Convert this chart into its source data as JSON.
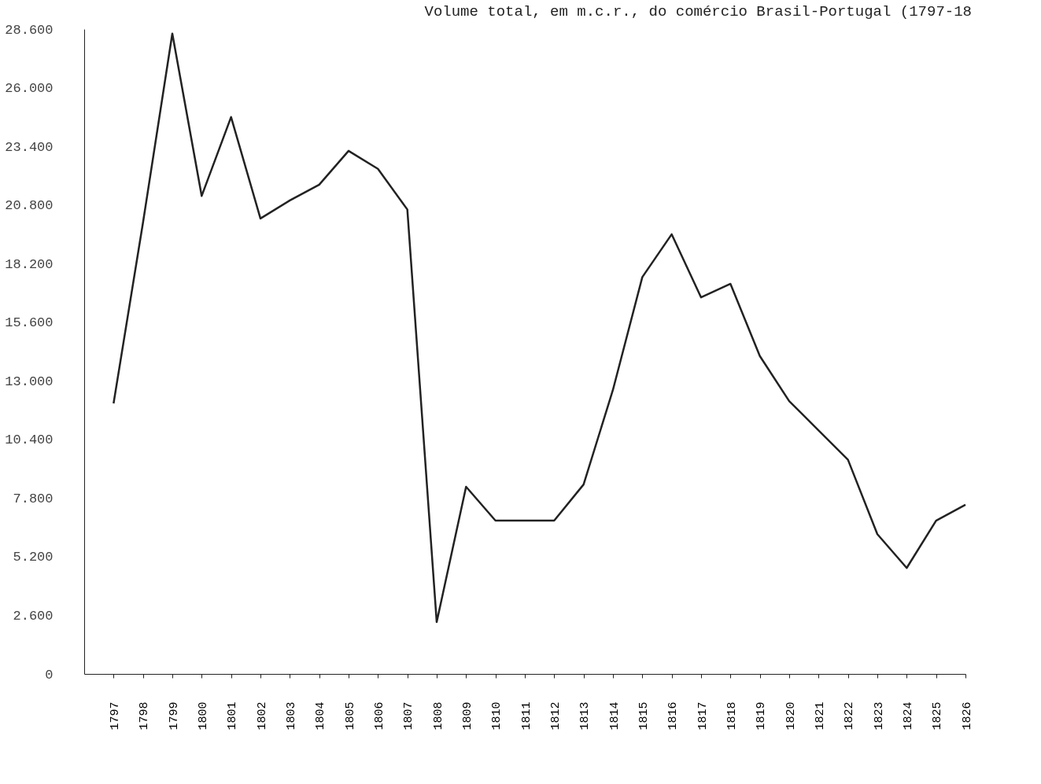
{
  "chart_data": {
    "type": "line",
    "title": "Volume total, em m.c.r., do comércio Brasil-Portugal (1797-18",
    "categories": [
      "1797",
      "1798",
      "1799",
      "1800",
      "1801",
      "1802",
      "1803",
      "1804",
      "1805",
      "1806",
      "1807",
      "1808",
      "1809",
      "1810",
      "1811",
      "1812",
      "1813",
      "1814",
      "1815",
      "1816",
      "1817",
      "1818",
      "1819",
      "1820",
      "1821",
      "1822",
      "1823",
      "1824",
      "1825",
      "1826"
    ],
    "series": [
      {
        "color": "#222222",
        "values": [
          12000,
          20000,
          28400,
          21200,
          24700,
          20200,
          21000,
          21700,
          23200,
          22400,
          20600,
          2300,
          8300,
          6800,
          6800,
          6800,
          8400,
          12600,
          17600,
          19500,
          16700,
          17300,
          14100,
          12100,
          10800,
          9500,
          6200,
          4700,
          6800,
          7500
        ]
      }
    ],
    "ylim": [
      0,
      28600
    ],
    "yticks": [
      {
        "value": 0,
        "label": "0"
      },
      {
        "value": 2600,
        "label": "2.600"
      },
      {
        "value": 5200,
        "label": "5.200"
      },
      {
        "value": 7800,
        "label": "7.800"
      },
      {
        "value": 10400,
        "label": "10.400"
      },
      {
        "value": 13000,
        "label": "13.000"
      },
      {
        "value": 15600,
        "label": "15.600"
      },
      {
        "value": 18200,
        "label": "18.200"
      },
      {
        "value": 20800,
        "label": "20.800"
      },
      {
        "value": 23400,
        "label": "23.400"
      },
      {
        "value": 26000,
        "label": "26.000"
      },
      {
        "value": 28600,
        "label": "28.600"
      }
    ],
    "grid": false,
    "legend": false,
    "marker": "none",
    "line_style": "solid"
  }
}
